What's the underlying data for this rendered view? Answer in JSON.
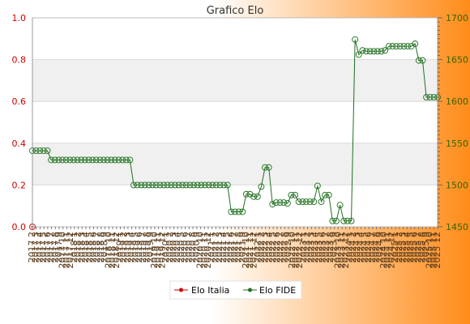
{
  "chart_data": {
    "type": "line",
    "title": "Grafico Elo",
    "colors": {
      "bg_left": "#ffffff",
      "bg_right": "#ff8c1a",
      "band": "#f0f0f0",
      "grid": "#d9d9d9",
      "left_axis": "#cc0000",
      "right_axis": "#336600",
      "fide_line": "#1f6f1f",
      "italia_line": "#cc0000"
    },
    "left_axis": {
      "min": 0,
      "max": 1,
      "ticks": [
        "0.0",
        "0.2",
        "0.4",
        "0.6",
        "0.8",
        "1.0"
      ]
    },
    "right_axis": {
      "min": 1450,
      "max": 1700,
      "ticks": [
        "1450",
        "1500",
        "1550",
        "1600",
        "1650",
        "1700"
      ]
    },
    "x_tick_labels": [
      "2017 2",
      "2017 3",
      "2017 4",
      "2017 5",
      "2017 6",
      "2017 7",
      "2017 8",
      "2017 9",
      "2017 10",
      "2017 11",
      "2017 12",
      "2018 1",
      "2018 2",
      "2018 3",
      "2018 4",
      "2018 5",
      "2018 6",
      "2018 7",
      "2018 8",
      "2018 9",
      "2018 10",
      "2018 11",
      "2018 12",
      "2019 1",
      "2019 2",
      "2019 3",
      "2019 4",
      "2019 5",
      "2019 6",
      "2019 7",
      "2019 8",
      "2019 9",
      "2019 10",
      "2019 11",
      "2019 12",
      "2020 1",
      "2020 2",
      "2020 3",
      "2020 4",
      "2020 5",
      "2020 6",
      "2020 7",
      "2020 8",
      "2020 9",
      "2020 10",
      "2020 11",
      "2020 12",
      "2021 1",
      "2021 2",
      "2021 3",
      "2021 4",
      "2021 5",
      "2021 6",
      "2021 7",
      "2021 8",
      "2021 9",
      "2021 10",
      "2021 11",
      "2021 12",
      "2022 1",
      "2022 2",
      "2022 3",
      "2022 4",
      "2022 5",
      "2022 6",
      "2022 7",
      "2022 8",
      "2022 9",
      "2022 10",
      "2022 11",
      "2022 12",
      "2023 1",
      "2023 2",
      "2023 3",
      "2023 4",
      "2023 5",
      "2023 6",
      "2023 7",
      "2023 8",
      "2023 9",
      "2023 10",
      "2023 11",
      "2023 12",
      "2024 1",
      "2024 2",
      "2024 3",
      "2024 4",
      "2024 5",
      "2024 6",
      "2024 7",
      "2024 8",
      "2024 9",
      "2024 10",
      "2024 11",
      "2024 12",
      "2025 1",
      "2025 2",
      "2025 3",
      "2025 4",
      "2025 5",
      "2025 6",
      "2025 7",
      "2025 8",
      "2025 9",
      "2025 10",
      "2025 11",
      "2025 12"
    ],
    "series": [
      {
        "name": "Elo Italia",
        "axis": "left",
        "values": [
          0
        ]
      },
      {
        "name": "Elo FIDE",
        "axis": "right",
        "values": [
          1541,
          1541,
          1541,
          1541,
          1541,
          1530,
          1530,
          1530,
          1530,
          1530,
          1530,
          1530,
          1530,
          1530,
          1530,
          1530,
          1530,
          1530,
          1530,
          1530,
          1530,
          1530,
          1530,
          1530,
          1530,
          1530,
          1530,
          1500,
          1500,
          1500,
          1500,
          1500,
          1500,
          1500,
          1500,
          1500,
          1500,
          1500,
          1500,
          1500,
          1500,
          1500,
          1500,
          1500,
          1500,
          1500,
          1500,
          1500,
          1500,
          1500,
          1500,
          1500,
          1500,
          1468,
          1468,
          1468,
          1468,
          1489,
          1489,
          1486,
          1486,
          1498,
          1521,
          1521,
          1477,
          1479,
          1479,
          1479,
          1478,
          1488,
          1488,
          1480,
          1480,
          1480,
          1480,
          1480,
          1499,
          1480,
          1488,
          1488,
          1457,
          1457,
          1476,
          1457,
          1457,
          1457,
          1674,
          1656,
          1661,
          1660,
          1660,
          1660,
          1660,
          1660,
          1661,
          1666,
          1666,
          1666,
          1666,
          1666,
          1666,
          1666,
          1669,
          1649,
          1649,
          1605,
          1605,
          1605,
          1605
        ]
      }
    ]
  }
}
